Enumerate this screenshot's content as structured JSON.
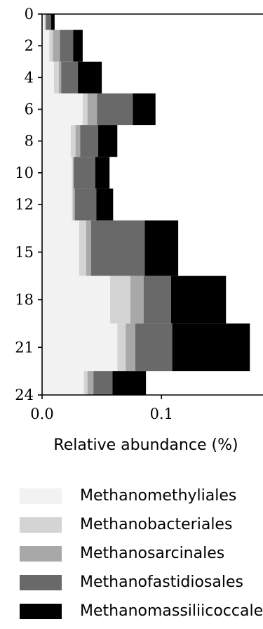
{
  "chart_data": {
    "type": "bar",
    "orientation": "horizontal",
    "stacked": true,
    "xlabel": "Relative abundance (%)",
    "ylabel": "",
    "xlim": [
      0,
      0.185
    ],
    "ylim": [
      24,
      0
    ],
    "x_ticks": [
      0.0,
      0.1
    ],
    "x_tick_labels": [
      "0.0",
      "0.1"
    ],
    "y_ticks": [
      0,
      2,
      4,
      6,
      8,
      10,
      12,
      15,
      18,
      21,
      24
    ],
    "y_tick_labels": [
      "0",
      "2",
      "4",
      "6",
      "8",
      "10",
      "12",
      "15",
      "18",
      "21",
      "24"
    ],
    "legend_position": "bottom",
    "depth_bands": [
      {
        "from": 0,
        "to": 1
      },
      {
        "from": 1,
        "to": 3
      },
      {
        "from": 3,
        "to": 5
      },
      {
        "from": 5,
        "to": 7
      },
      {
        "from": 7,
        "to": 9
      },
      {
        "from": 9,
        "to": 11
      },
      {
        "from": 11,
        "to": 13
      },
      {
        "from": 13,
        "to": 16.5
      },
      {
        "from": 16.5,
        "to": 19.5
      },
      {
        "from": 19.5,
        "to": 22.5
      },
      {
        "from": 22.5,
        "to": 24
      }
    ],
    "series": [
      {
        "name": "Methanomethyliales",
        "color": "#f2f2f2",
        "values": [
          0.002,
          0.006,
          0.01,
          0.034,
          0.024,
          0.025,
          0.025,
          0.031,
          0.057,
          0.063,
          0.035
        ]
      },
      {
        "name": "Methanobacteriales",
        "color": "#d4d4d4",
        "values": [
          0.0005,
          0.003,
          0.004,
          0.004,
          0.004,
          0.001,
          0.001,
          0.006,
          0.017,
          0.007,
          0.003
        ]
      },
      {
        "name": "Methanosarcinales",
        "color": "#a8a8a8",
        "values": [
          0.001,
          0.006,
          0.002,
          0.008,
          0.004,
          0.0005,
          0.0015,
          0.004,
          0.011,
          0.008,
          0.005
        ]
      },
      {
        "name": "Methanofastidiosales",
        "color": "#696969",
        "values": [
          0.004,
          0.011,
          0.014,
          0.03,
          0.015,
          0.018,
          0.018,
          0.045,
          0.023,
          0.031,
          0.016
        ]
      },
      {
        "name": "Methanomassiliicoccales",
        "color": "#000000",
        "values": [
          0.003,
          0.008,
          0.02,
          0.019,
          0.016,
          0.012,
          0.014,
          0.028,
          0.046,
          0.065,
          0.028
        ]
      }
    ]
  }
}
